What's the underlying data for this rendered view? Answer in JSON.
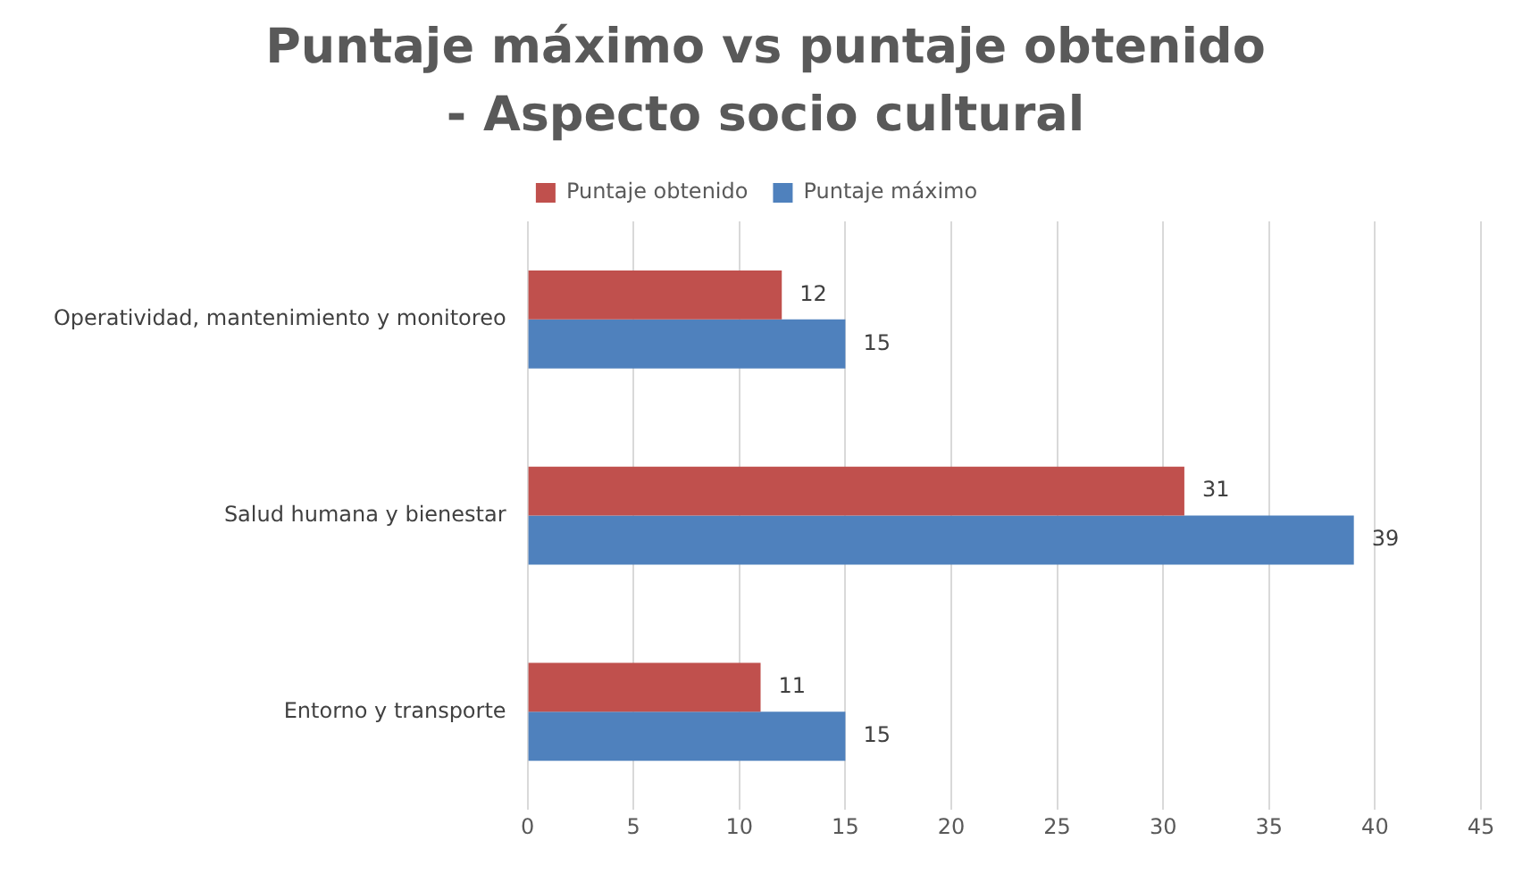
{
  "chart_data": {
    "type": "bar",
    "orientation": "horizontal",
    "title": "Puntaje máximo vs puntaje obtenido - Aspecto socio cultural",
    "categories": [
      "Operatividad, mantenimiento y monitoreo",
      "Salud humana y bienestar",
      "Entorno y transporte"
    ],
    "series": [
      {
        "name": "Puntaje obtenido",
        "color": "#c0504d",
        "values": [
          12,
          31,
          11
        ]
      },
      {
        "name": "Puntaje máximo",
        "color": "#4f81bd",
        "values": [
          15,
          39,
          15
        ]
      }
    ],
    "xlim": [
      0,
      45
    ],
    "xticks": [
      0,
      5,
      10,
      15,
      20,
      25,
      30,
      35,
      40,
      45
    ],
    "grid": "x",
    "legend": "top",
    "data_labels": true
  }
}
